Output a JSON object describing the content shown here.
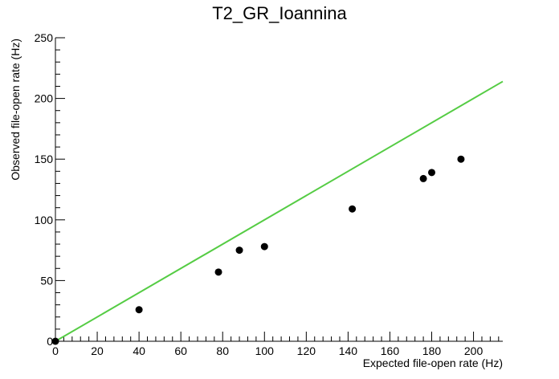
{
  "chart_data": {
    "type": "scatter",
    "title": "T2_GR_Ioannina",
    "xlabel": "Expected file-open rate (Hz)",
    "ylabel": "Observed file-open rate (Hz)",
    "xlim": [
      0,
      214
    ],
    "ylim": [
      0,
      250
    ],
    "x_ticks": [
      "0",
      "20",
      "40",
      "60",
      "80",
      "100",
      "120",
      "140",
      "160",
      "180",
      "200"
    ],
    "y_ticks": [
      "0",
      "50",
      "100",
      "150",
      "200",
      "250"
    ],
    "grid": false,
    "points": [
      {
        "x": 0,
        "y": 0
      },
      {
        "x": 40,
        "y": 26
      },
      {
        "x": 78,
        "y": 57
      },
      {
        "x": 88,
        "y": 75
      },
      {
        "x": 100,
        "y": 78
      },
      {
        "x": 142,
        "y": 109
      },
      {
        "x": 176,
        "y": 134
      },
      {
        "x": 180,
        "y": 139
      },
      {
        "x": 194,
        "y": 150
      }
    ],
    "reference_line": {
      "slope": 1,
      "intercept": 0,
      "x": [
        0,
        214
      ],
      "y": [
        0,
        214
      ]
    },
    "colors": {
      "points": "#000000",
      "reference_line": "#55cc44",
      "axes": "#000000"
    }
  }
}
